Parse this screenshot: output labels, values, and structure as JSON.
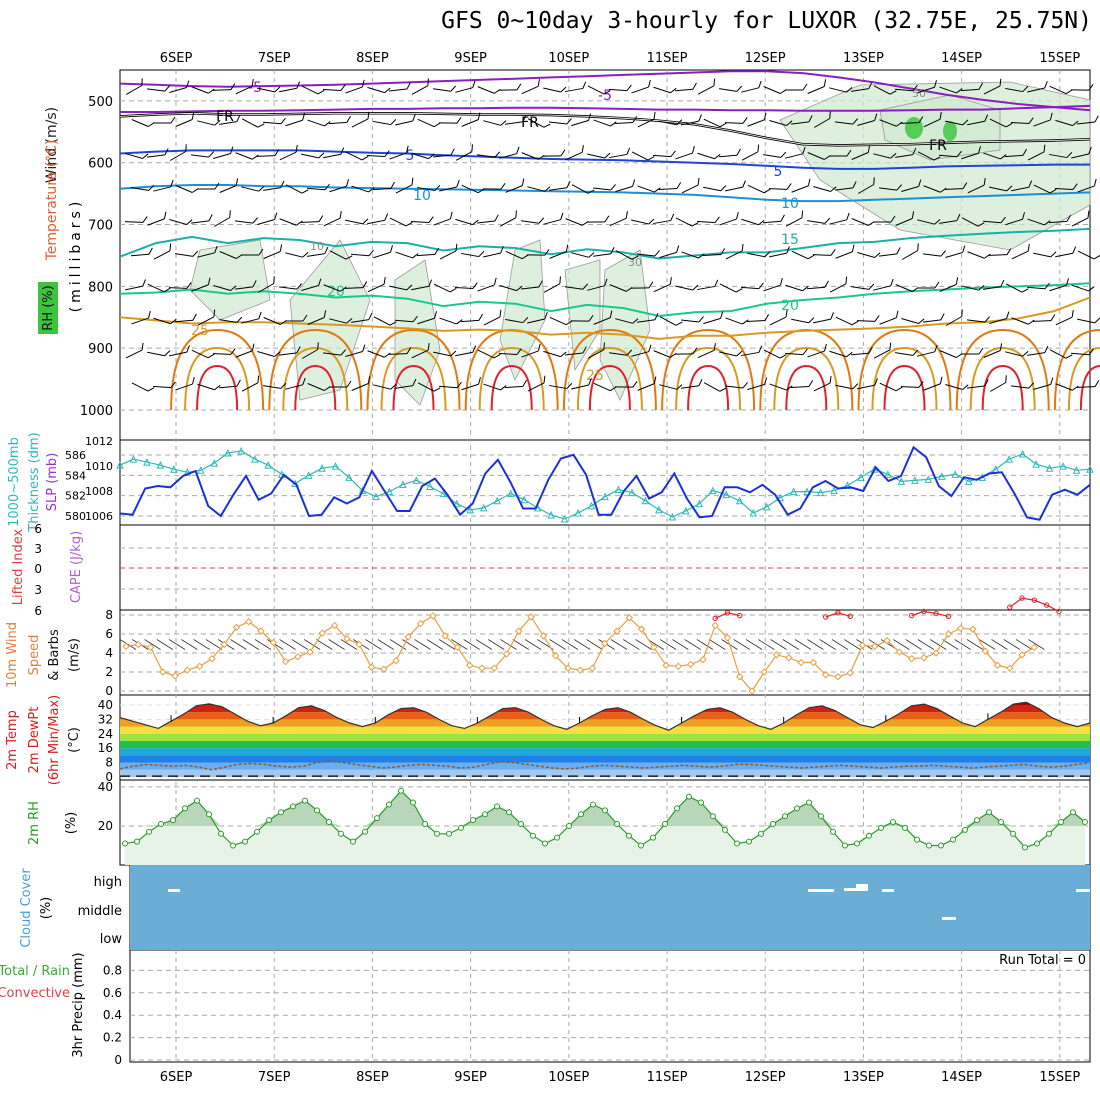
{
  "title": "GFS 0~10day 3-hourly for LUXOR (32.75E, 25.75N)",
  "dates": [
    "6SEP",
    "7SEP",
    "8SEP",
    "9SEP",
    "10SEP",
    "11SEP",
    "12SEP",
    "13SEP",
    "14SEP",
    "15SEP"
  ],
  "colors": {
    "grid": "#9a9a9a",
    "purple": "#8a1fc0",
    "blue": "#1f44d8",
    "lightblue": "#1c8fd8",
    "teal": "#18b0a8",
    "green": "#18c890",
    "orange": "#d89a20",
    "darkorange": "#e07a10",
    "red": "#e0202a",
    "thickness": "#30b8b8",
    "slp": "#1c30d8",
    "wind": "#e8a040",
    "rh": "#2a9a2a",
    "cloud": "#6aaed6"
  },
  "chart_data": [
    {
      "type": "contour",
      "panel": "upper-air",
      "ylabel_left": [
        "Wind (m/s)",
        "Temperature (°C)",
        "RH (%)"
      ],
      "ylabel_right": "(millibars)",
      "yticks": [
        500,
        600,
        700,
        800,
        900,
        1000
      ],
      "yrange": [
        450,
        1000
      ],
      "isotherm_labels": [
        "-5",
        "-5",
        "FR",
        "FR",
        "FR",
        "5",
        "5",
        "10",
        "10",
        "15",
        "20",
        "20",
        "25",
        "25"
      ],
      "rh_labels": [
        "10",
        "30",
        "50"
      ],
      "isotherms": [
        {
          "label": "-5",
          "color": "purple",
          "levels": [
            472,
            474,
            476,
            477,
            476,
            475,
            474,
            472,
            470,
            468,
            466,
            464,
            462,
            460,
            458,
            456,
            454,
            452,
            452,
            455,
            462,
            470,
            480,
            490,
            498,
            505,
            510,
            515
          ]
        },
        {
          "label": "-5",
          "color": "purple",
          "levels": [
            518,
            518,
            517,
            516,
            516,
            515,
            514,
            513,
            513,
            512,
            512,
            511,
            511,
            512,
            513,
            514,
            514,
            515,
            515,
            516,
            516,
            516,
            515,
            514,
            514,
            512,
            510,
            508
          ]
        },
        {
          "label": "FR",
          "color": "black",
          "levels": [
            525,
            522,
            520,
            522,
            522,
            521,
            520,
            520,
            520,
            521,
            522,
            522,
            523,
            525,
            528,
            532,
            538,
            548,
            560,
            570,
            572,
            571,
            570,
            568,
            566,
            565,
            564,
            562
          ]
        },
        {
          "label": "5",
          "color": "blue",
          "levels": [
            585,
            582,
            580,
            580,
            580,
            580,
            582,
            584,
            585,
            588,
            590,
            592,
            594,
            595,
            596,
            598,
            600,
            602,
            605,
            608,
            610,
            610,
            608,
            606,
            605,
            604,
            603,
            603
          ]
        },
        {
          "label": "10",
          "color": "lightblue",
          "levels": [
            642,
            638,
            636,
            636,
            638,
            638,
            640,
            641,
            642,
            643,
            644,
            645,
            646,
            647,
            648,
            650,
            652,
            656,
            660,
            662,
            662,
            660,
            658,
            656,
            654,
            652,
            650,
            648
          ]
        },
        {
          "label": "15",
          "color": "teal",
          "levels": [
            752,
            730,
            720,
            730,
            722,
            725,
            735,
            728,
            730,
            742,
            735,
            738,
            748,
            740,
            745,
            755,
            750,
            745,
            745,
            738,
            730,
            728,
            722,
            718,
            715,
            712,
            710,
            707
          ]
        },
        {
          "label": "20",
          "color": "green",
          "levels": [
            812,
            810,
            805,
            812,
            808,
            812,
            818,
            815,
            820,
            832,
            825,
            828,
            840,
            830,
            835,
            848,
            842,
            840,
            828,
            822,
            818,
            812,
            808,
            805,
            802,
            800,
            798,
            795
          ]
        },
        {
          "label": "25",
          "color": "orange",
          "levels": [
            850,
            855,
            860,
            858,
            858,
            860,
            862,
            865,
            868,
            872,
            870,
            872,
            878,
            875,
            878,
            885,
            880,
            880,
            875,
            872,
            870,
            868,
            865,
            860,
            858,
            852,
            840,
            818
          ]
        }
      ],
      "warm_domes": {
        "center_days": [
          0.5,
          1.5,
          2.5,
          3.5,
          4.5,
          5.5,
          6.5,
          7.5,
          8.5,
          9.5
        ],
        "colors": [
          "darkorange",
          "orange",
          "red"
        ]
      }
    },
    {
      "type": "line",
      "panel": "thickness-slp",
      "ylabel": [
        "1000~500mb",
        "Thickness (dm)",
        "SLP (mb)"
      ],
      "left_ticks": [
        580,
        582,
        584,
        586
      ],
      "right_ticks": [
        1006,
        1008,
        1010,
        1012
      ],
      "series": [
        {
          "name": "Thickness (dm)",
          "color": "thickness",
          "axis": "left",
          "values": [
            585,
            585.6,
            585.3,
            585,
            584.6,
            584.3,
            584.5,
            585.2,
            586.2,
            586.4,
            585.6,
            585,
            584.1,
            583.2,
            584,
            584.7,
            584.9,
            583.8,
            582.5,
            581.9,
            582.4,
            583.1,
            583.5,
            582.9,
            582.2,
            581.2,
            580.6,
            580.8,
            581.5,
            582.2,
            581.6,
            580.8,
            580.1,
            579.7,
            580.3,
            581,
            581.9,
            582.6,
            582.3,
            581.5,
            580.6,
            579.9,
            580.5,
            581.2,
            582.5,
            582.1,
            581.5,
            580.3,
            580.9,
            581.8,
            582.4,
            582.4,
            582.3,
            582.5,
            583,
            583.8,
            584.6,
            584.1,
            583.4,
            583.5,
            583.6,
            583.9,
            584.1,
            583.4,
            583.8,
            584.6,
            585.6,
            586.1,
            585.1,
            584.7,
            584.9,
            584.5,
            584.6
          ]
        },
        {
          "name": "SLP (mb)",
          "color": "slp",
          "axis": "right",
          "values": [
            1006.2,
            1006.1,
            1008.2,
            1008.4,
            1008.3,
            1009.2,
            1009.6,
            1006.8,
            1006,
            1007.7,
            1009.2,
            1007.3,
            1007.8,
            1009.3,
            1008.5,
            1006,
            1006.1,
            1007.5,
            1007,
            1007.5,
            1009.6,
            1008,
            1006.4,
            1006.4,
            1008.4,
            1009,
            1007.7,
            1006.1,
            1007,
            1009.4,
            1010.5,
            1008.7,
            1006.6,
            1006.6,
            1008.9,
            1010.6,
            1010.9,
            1009.3,
            1006.1,
            1006.1,
            1008,
            1009.2,
            1007.4,
            1007.9,
            1009.4,
            1007.4,
            1005.9,
            1006,
            1008.3,
            1008.3,
            1007.9,
            1008.5,
            1007.7,
            1006.1,
            1006.6,
            1008.3,
            1008.8,
            1008.2,
            1008.3,
            1008,
            1009.9,
            1008.8,
            1009.2,
            1011.5,
            1010.7,
            1008.4,
            1007.6,
            1009.1,
            1008.9,
            1009.4,
            1009.5,
            1007.8,
            1005.9,
            1005.7,
            1007.7,
            1008.1,
            1007.7,
            1008.5
          ]
        }
      ]
    },
    {
      "type": "line",
      "panel": "cape-lifted-index",
      "ylabel": [
        "Lifted Index",
        "CAPE (J/kg)"
      ],
      "yticks": [
        "6",
        "3",
        "0",
        "3",
        "6"
      ],
      "lifted_index_segments": [
        {
          "start_idx": 48,
          "values": [
            7.2,
            6.4,
            6.8
          ]
        },
        {
          "start_idx": 57,
          "values": [
            7,
            6.4,
            6.9
          ]
        },
        {
          "start_idx": 64,
          "values": [
            6.8,
            6.2,
            6.5,
            6.9
          ]
        },
        {
          "start_idx": 72,
          "values": [
            5.6,
            4.3,
            4.6,
            5.3,
            6.2
          ]
        }
      ]
    },
    {
      "type": "line",
      "panel": "wind-10m",
      "ylabel": [
        "10m Wind",
        "Speed",
        "& Barbs",
        "(m/s)"
      ],
      "yticks": [
        0,
        2,
        4,
        6,
        8
      ],
      "series": [
        {
          "name": "10m wind speed",
          "color": "wind",
          "values": [
            4.7,
            4.9,
            4.6,
            2,
            1.6,
            2.2,
            2.6,
            3.4,
            4.9,
            6.7,
            7.3,
            6.3,
            5.1,
            3.1,
            3.6,
            4.1,
            6.1,
            6.9,
            5.5,
            4.9,
            2.5,
            2.3,
            3.2,
            5.7,
            7.1,
            7.9,
            5.8,
            4.6,
            2.7,
            2.4,
            2.4,
            3.9,
            6.3,
            7.8,
            5.8,
            3.7,
            2.4,
            2.2,
            2.4,
            5,
            6.3,
            7.7,
            6.5,
            4.6,
            2.7,
            2.6,
            2.8,
            3.3,
            6.9,
            5.6,
            1.5,
            0,
            2,
            3.8,
            3.5,
            3,
            3,
            1.7,
            1.5,
            1.9,
            4.8,
            4.7,
            5.3,
            4.1,
            3.4,
            3.5,
            4,
            6,
            6.6,
            6.5,
            4.2,
            2.7,
            2.4,
            3.8,
            4.6
          ]
        }
      ]
    },
    {
      "type": "area",
      "panel": "temperature-2m",
      "ylabel": [
        "2m Temp",
        "2m DewPt",
        "(6hr Min/Max)",
        "(°C)"
      ],
      "yticks": [
        0,
        8,
        16,
        24,
        32,
        40
      ],
      "series": [
        {
          "name": "2m Temp",
          "color": "black",
          "values": [
            33,
            31,
            29,
            27,
            31,
            35,
            39.6,
            40.6,
            39,
            35,
            31,
            28.5,
            30,
            34,
            38.5,
            39.5,
            37,
            33,
            30,
            28,
            30,
            34.5,
            38,
            38.5,
            36,
            32,
            28.5,
            27,
            30,
            34,
            38,
            38.5,
            36,
            32,
            28.5,
            26.5,
            30,
            34,
            37.5,
            38.5,
            36,
            32,
            28.5,
            26,
            30,
            34,
            37.5,
            38.5,
            36,
            32,
            28.5,
            26.5,
            30,
            34.5,
            38.5,
            39.5,
            37,
            33,
            29,
            27.5,
            31,
            35,
            39.5,
            40.5,
            38,
            34,
            30,
            28,
            32,
            36,
            40.5,
            41.5,
            38,
            33,
            30,
            28,
            30
          ]
        },
        {
          "name": "2m DewPt",
          "color": "brown",
          "values": [
            4.5,
            6,
            7,
            6.5,
            6,
            6.5,
            5.5,
            4,
            5.5,
            7,
            7.5,
            7,
            6,
            5.5,
            6,
            8,
            9,
            8,
            7,
            6,
            5,
            5.5,
            6.5,
            7,
            6.5,
            6,
            5,
            5.5,
            7,
            8.5,
            8,
            7,
            6,
            5,
            4.5,
            5,
            6,
            6.5,
            6,
            5.5,
            5,
            5.5,
            6,
            6.5,
            6,
            5.5,
            6,
            7,
            7,
            6.5,
            6,
            5.5,
            5,
            5.5,
            6,
            6.5,
            6,
            5.5,
            5,
            5.5,
            6,
            6,
            6.5,
            6,
            5.5,
            5,
            5.5,
            6,
            6.5,
            7,
            6,
            5.5,
            6,
            7,
            8
          ]
        }
      ]
    },
    {
      "type": "area",
      "panel": "rh-2m",
      "ylabel": [
        "2m RH",
        "(%)"
      ],
      "yticks": [
        "20",
        "40"
      ],
      "series": [
        {
          "name": "2m RH",
          "color": "rh",
          "values": [
            11,
            12,
            17,
            21,
            23,
            29,
            33,
            26,
            16,
            10,
            12,
            17,
            23,
            27,
            30,
            33,
            28,
            22,
            16,
            12,
            17,
            24,
            31,
            38,
            32,
            21,
            16,
            16,
            19,
            23,
            26,
            30,
            27,
            21,
            15,
            11,
            14,
            20,
            26,
            31,
            28,
            21,
            15,
            10,
            14,
            21,
            29,
            35,
            32,
            25,
            18,
            11,
            12,
            16,
            21,
            25,
            29,
            32,
            25,
            17,
            10,
            11,
            15,
            19,
            22,
            19,
            13,
            10,
            10,
            13,
            18,
            23,
            27,
            22,
            16,
            9,
            11,
            16,
            22,
            27,
            22
          ]
        }
      ]
    },
    {
      "type": "heatmap",
      "panel": "cloud-cover",
      "ylabel": [
        "Cloud Cover",
        "(%)"
      ],
      "rows": [
        "high",
        "middle",
        "low"
      ],
      "note": "Cloud cover is 0% nearly everywhere; a few small high-cloud patches near 6SEP, 12SEP–13SEP and 15SEP and a tiny middle patch near 14SEP."
    },
    {
      "type": "bar",
      "panel": "precipitation",
      "ylabel": [
        "3hr Precip (mm)"
      ],
      "legend": [
        "Total / Rain",
        "Convective"
      ],
      "yticks": [
        "0",
        "0.2",
        "0.4",
        "0.6",
        "0.8"
      ],
      "ylim": [
        0,
        1
      ],
      "run_total": "Run Total = 0",
      "values": []
    }
  ]
}
